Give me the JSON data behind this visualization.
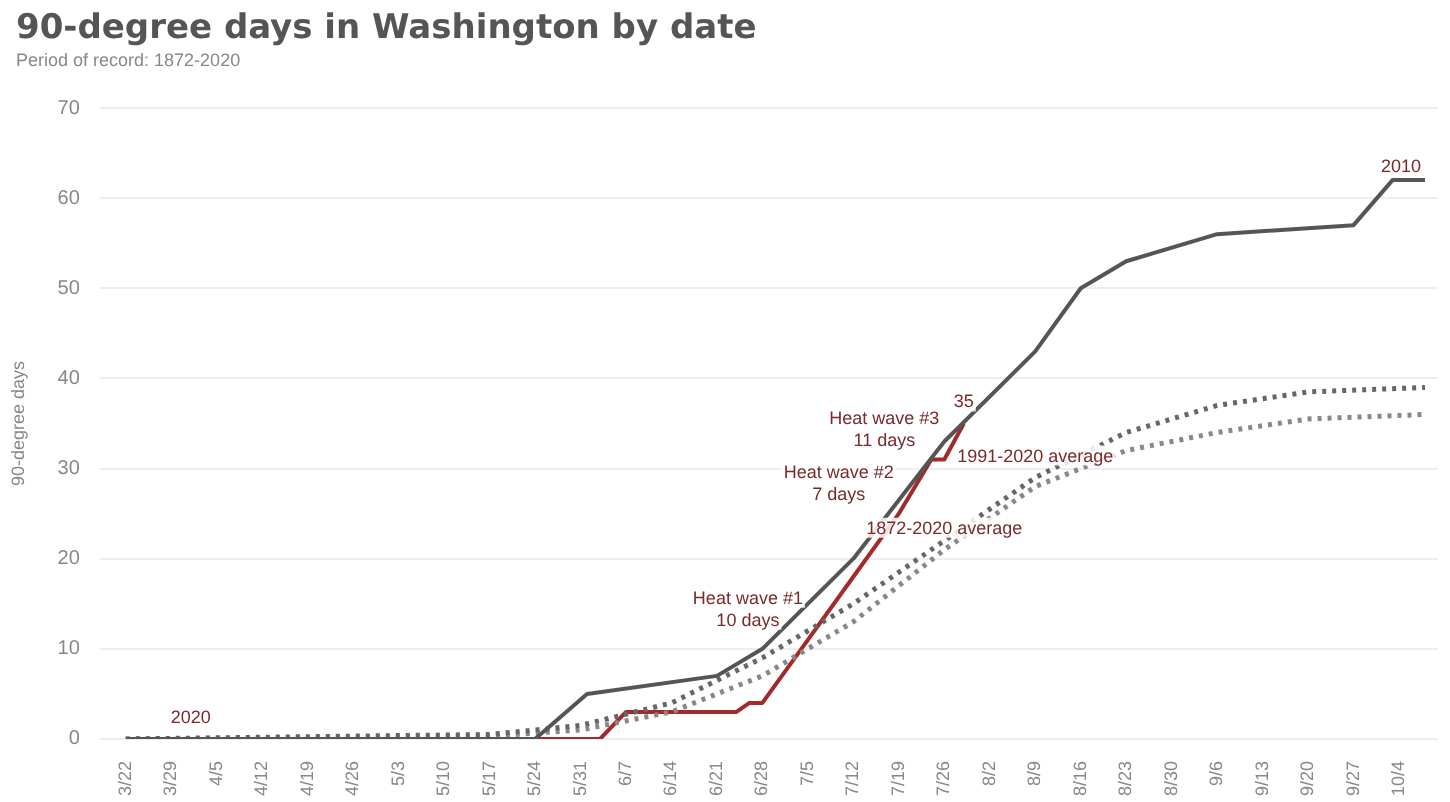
{
  "chart_data": {
    "type": "line",
    "title": "90-degree days in Washington by date",
    "subtitle": "Period of record: 1872-2020",
    "ylabel": "90-degree days",
    "xlim": [
      "--03-18",
      "--10-10"
    ],
    "xticks": [
      {
        "value": "--03-22",
        "label": "3/22"
      },
      {
        "value": "--03-29",
        "label": "3/29"
      },
      {
        "value": "--04-05",
        "label": "4/5"
      },
      {
        "value": "--04-12",
        "label": "4/12"
      },
      {
        "value": "--04-19",
        "label": "4/19"
      },
      {
        "value": "--04-26",
        "label": "4/26"
      },
      {
        "value": "--05-03",
        "label": "5/3"
      },
      {
        "value": "--05-10",
        "label": "5/10"
      },
      {
        "value": "--05-17",
        "label": "5/17"
      },
      {
        "value": "--05-24",
        "label": "5/24"
      },
      {
        "value": "--05-31",
        "label": "5/31"
      },
      {
        "value": "--06-07",
        "label": "6/7"
      },
      {
        "value": "--06-14",
        "label": "6/14"
      },
      {
        "value": "--06-21",
        "label": "6/21"
      },
      {
        "value": "--06-28",
        "label": "6/28"
      },
      {
        "value": "--07-05",
        "label": "7/5"
      },
      {
        "value": "--07-12",
        "label": "7/12"
      },
      {
        "value": "--07-19",
        "label": "7/19"
      },
      {
        "value": "--07-26",
        "label": "7/26"
      },
      {
        "value": "--08-02",
        "label": "8/2"
      },
      {
        "value": "--08-09",
        "label": "8/9"
      },
      {
        "value": "--08-16",
        "label": "8/16"
      },
      {
        "value": "--08-23",
        "label": "8/23"
      },
      {
        "value": "--08-30",
        "label": "8/30"
      },
      {
        "value": "--09-06",
        "label": "9/6"
      },
      {
        "value": "--09-13",
        "label": "9/13"
      },
      {
        "value": "--09-20",
        "label": "9/20"
      },
      {
        "value": "--09-27",
        "label": "9/27"
      },
      {
        "value": "--10-04",
        "label": "10/4"
      }
    ],
    "ylim": [
      0,
      70
    ],
    "yticks": [
      0,
      10,
      20,
      30,
      40,
      50,
      60,
      70
    ],
    "grid": "y",
    "legend": false,
    "marker": "none",
    "series": [
      {
        "color": "#555555",
        "line_style": "solid",
        "x": [
          "--03-22",
          "--05-24",
          "--06-01",
          "--06-21",
          "--06-28",
          "--07-12",
          "--07-26",
          "--08-09",
          "--08-16",
          "--08-23",
          "--09-06",
          "--09-27",
          "--10-03",
          "--10-08"
        ],
        "values": [
          0,
          0,
          5,
          7,
          10,
          20,
          33,
          43,
          50,
          53,
          56,
          57,
          62,
          62
        ]
      },
      {
        "color": "#666666",
        "line_style": "dotted",
        "x": [
          "--03-22",
          "--05-17",
          "--05-31",
          "--06-14",
          "--06-28",
          "--07-12",
          "--07-26",
          "--08-09",
          "--08-23",
          "--09-06",
          "--09-20",
          "--10-08"
        ],
        "values": [
          0,
          0.5,
          1.5,
          4,
          9,
          15,
          22,
          29,
          34,
          37,
          38.5,
          39
        ]
      },
      {
        "color": "#888888",
        "line_style": "dotted",
        "x": [
          "--03-22",
          "--05-17",
          "--05-31",
          "--06-14",
          "--06-28",
          "--07-12",
          "--07-26",
          "--08-09",
          "--08-23",
          "--09-06",
          "--09-20",
          "--10-08"
        ],
        "values": [
          0,
          0.3,
          1,
          3,
          7,
          13,
          21,
          28,
          32,
          34,
          35.5,
          36
        ]
      },
      {
        "color": "#a32a2a",
        "line_style": "solid",
        "x": [
          "--03-22",
          "--06-03",
          "--06-07",
          "--06-24",
          "--06-26",
          "--06-28",
          "--07-05",
          "--07-12",
          "--07-19",
          "--07-24",
          "--07-26",
          "--07-29"
        ],
        "values": [
          0,
          0,
          3,
          3,
          4,
          4,
          11,
          18,
          25,
          31,
          31,
          35
        ]
      }
    ],
    "annotations": [
      {
        "text": "2020",
        "x": "--04-01",
        "y": 0
      },
      {
        "text": "35",
        "x": "--07-29",
        "y": 35
      },
      {
        "text": "2010",
        "x": "--10-08",
        "y": 62
      },
      {
        "text": "Heat wave #1\n10 days",
        "x": "--07-05",
        "y": 11
      },
      {
        "text": "Heat wave #2\n7 days",
        "x": "--07-19",
        "y": 25
      },
      {
        "text": "Heat wave #3\n11 days",
        "x": "--07-26",
        "y": 31
      },
      {
        "text": "1991-2020 average",
        "x": "--08-09",
        "y": 29
      },
      {
        "text": "1872-2020 average",
        "x": "--07-26",
        "y": 21
      }
    ]
  }
}
